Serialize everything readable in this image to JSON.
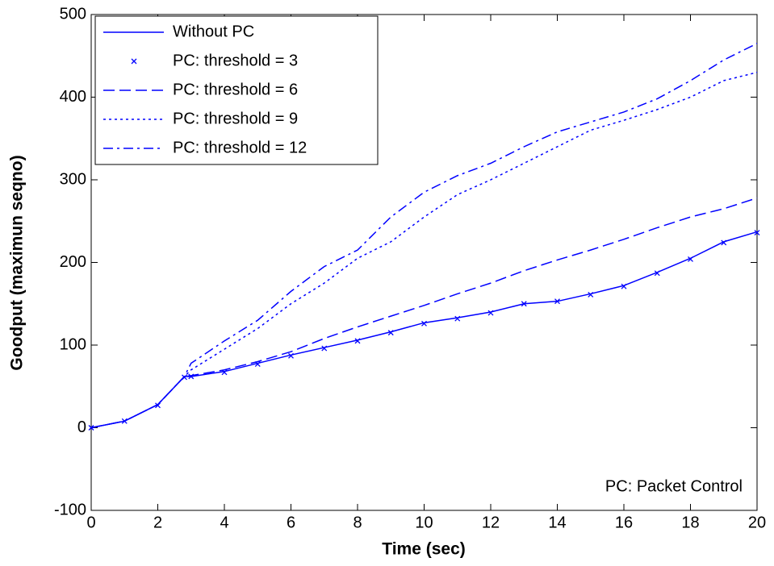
{
  "chart_data": {
    "type": "line",
    "xlabel": "Time (sec)",
    "ylabel": "Goodput (maximun seqno)",
    "annotation": "PC: Packet Control",
    "x": [
      0,
      1,
      2,
      2.8,
      3,
      4,
      5,
      6,
      7,
      8,
      9,
      10,
      11,
      12,
      13,
      14,
      15,
      16,
      17,
      18,
      19,
      20
    ],
    "series": [
      {
        "name": "Without PC",
        "color": "#0000ff",
        "linestyle": "solid",
        "values": [
          0,
          8,
          28,
          62,
          62,
          68,
          78,
          88,
          97,
          106,
          116,
          127,
          133,
          140,
          150,
          153,
          162,
          172,
          188,
          205,
          225,
          237
        ]
      },
      {
        "name": "PC: threshold = 3",
        "color": "#0000ff",
        "linestyle": "none",
        "marker": "x",
        "values": [
          0,
          8,
          27,
          61,
          62,
          67,
          77,
          87,
          96,
          105,
          115,
          126,
          132,
          139,
          150,
          153,
          161,
          171,
          187,
          204,
          224,
          236
        ]
      },
      {
        "name": "PC: threshold = 6",
        "color": "#0000ff",
        "linestyle": "dashed",
        "values": [
          0,
          8,
          28,
          62,
          63,
          70,
          80,
          92,
          108,
          122,
          135,
          148,
          162,
          175,
          190,
          203,
          215,
          228,
          242,
          255,
          265,
          278
        ]
      },
      {
        "name": "PC: threshold = 9",
        "color": "#0000ff",
        "linestyle": "dotted",
        "values": [
          0,
          8,
          28,
          62,
          70,
          95,
          120,
          150,
          175,
          205,
          225,
          255,
          282,
          300,
          320,
          340,
          360,
          372,
          385,
          400,
          420,
          430
        ]
      },
      {
        "name": "PC: threshold = 12",
        "color": "#0000ff",
        "linestyle": "dashdot",
        "values": [
          0,
          8,
          28,
          62,
          78,
          105,
          130,
          165,
          195,
          215,
          255,
          285,
          305,
          320,
          340,
          358,
          370,
          382,
          398,
          420,
          445,
          465
        ]
      }
    ],
    "xlim": [
      0,
      20
    ],
    "xticks": [
      0,
      2,
      4,
      6,
      8,
      10,
      12,
      14,
      16,
      18,
      20
    ],
    "ylim": [
      -100,
      500
    ],
    "yticks": [
      -100,
      0,
      100,
      200,
      300,
      400,
      500
    ],
    "legend": "upper left",
    "grid": false
  }
}
